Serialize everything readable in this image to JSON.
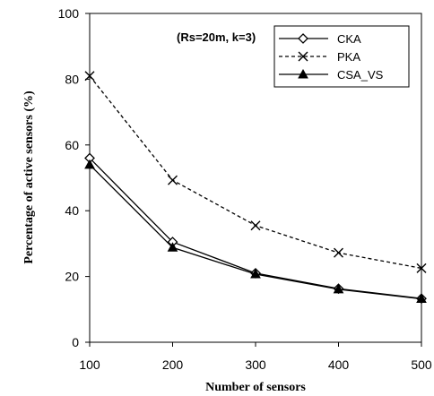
{
  "chart_data": {
    "type": "line",
    "title": "",
    "annotation": "(Rs=20m, k=3)",
    "xlabel": "Number of sensors",
    "ylabel": "Percentage of active sensors (%)",
    "x": [
      100,
      200,
      300,
      400,
      500
    ],
    "x_ticks": [
      "100",
      "200",
      "300",
      "400",
      "500"
    ],
    "y_ticks": [
      "0",
      "20",
      "40",
      "60",
      "80",
      "100"
    ],
    "xlim": [
      100,
      500
    ],
    "ylim": [
      0,
      100
    ],
    "grid": false,
    "legend_position": "top-right",
    "series": [
      {
        "name": "CKA",
        "values": [
          56,
          30.5,
          21,
          16.3,
          13.3
        ],
        "marker": "diamond-open",
        "line_style": "solid",
        "color": "#000000"
      },
      {
        "name": "PKA",
        "values": [
          81,
          49.3,
          35.5,
          27.2,
          22.5
        ],
        "marker": "x",
        "line_style": "dashed",
        "color": "#000000"
      },
      {
        "name": "CSA_VS",
        "values": [
          54,
          28.8,
          20.7,
          16.1,
          13.2
        ],
        "marker": "triangle-filled",
        "line_style": "solid",
        "color": "#000000"
      }
    ]
  }
}
